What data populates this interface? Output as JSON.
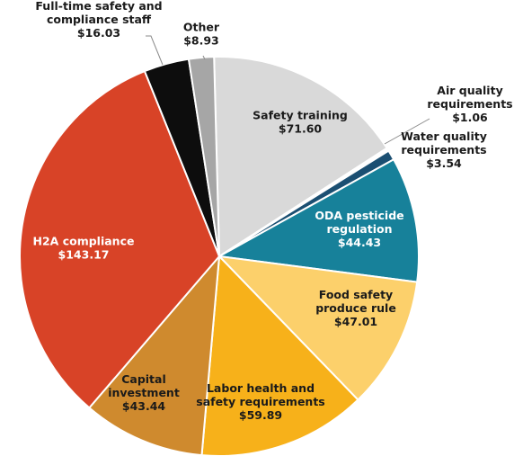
{
  "chart_data": {
    "type": "pie",
    "slices": [
      {
        "label_lines": [
          "Safety training"
        ],
        "value_text": "$71.60",
        "value": 71.6,
        "color": "#d9d9d9",
        "label_color": "#1a1a1a"
      },
      {
        "label_lines": [
          "Air quality",
          "requirements"
        ],
        "value_text": "$1.06",
        "value": 1.06,
        "color": "#ffffff",
        "label_color": "#1a1a1a"
      },
      {
        "label_lines": [
          "Water quality",
          "requirements"
        ],
        "value_text": "$3.54",
        "value": 3.54,
        "color": "#1b4f72",
        "label_color": "#1a1a1a"
      },
      {
        "label_lines": [
          "ODA pesticide",
          "regulation"
        ],
        "value_text": "$44.43",
        "value": 44.43,
        "color": "#17819a",
        "label_color": "#ffffff"
      },
      {
        "label_lines": [
          "Food safety",
          "produce rule"
        ],
        "value_text": "$47.01",
        "value": 47.01,
        "color": "#fcd06b",
        "label_color": "#1a1a1a"
      },
      {
        "label_lines": [
          "Labor health and",
          "safety requirements"
        ],
        "value_text": "$59.89",
        "value": 59.89,
        "color": "#f7b11a",
        "label_color": "#1a1a1a"
      },
      {
        "label_lines": [
          "Capital",
          "investment"
        ],
        "value_text": "$43.44",
        "value": 43.44,
        "color": "#cf8a2e",
        "label_color": "#1a1a1a"
      },
      {
        "label_lines": [
          "H2A compliance"
        ],
        "value_text": "$143.17",
        "value": 143.17,
        "color": "#d84327",
        "label_color": "#ffffff"
      },
      {
        "label_lines": [
          "Full-time safety and",
          "compliance staff"
        ],
        "value_text": "$16.03",
        "value": 16.03,
        "color": "#0d0d0d",
        "label_color": "#1a1a1a"
      },
      {
        "label_lines": [
          "Other"
        ],
        "value_text": "$8.93",
        "value": 8.93,
        "color": "#a6a6a6",
        "label_color": "#1a1a1a"
      }
    ]
  }
}
